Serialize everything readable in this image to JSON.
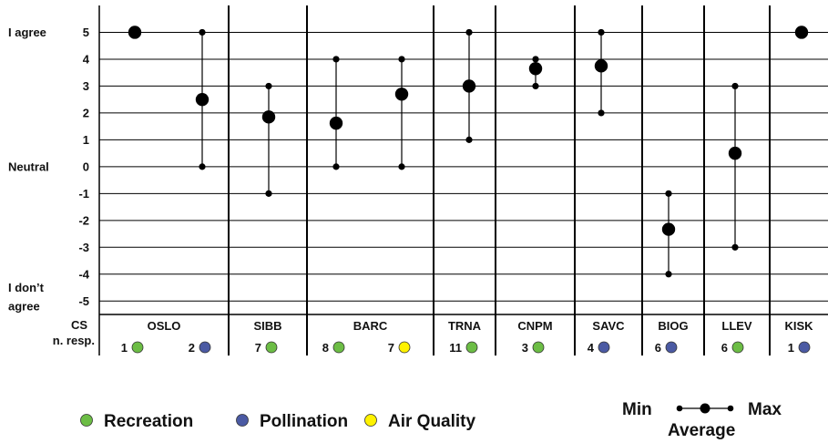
{
  "chart_data": {
    "type": "scatter",
    "y_range": [
      -5.5,
      6
    ],
    "y_ticks": [
      5,
      4,
      3,
      2,
      1,
      0,
      -1,
      -2,
      -3,
      -4,
      -5
    ],
    "y_tick_labels": [
      "5",
      "4",
      "3",
      "2",
      "1",
      "0",
      "-1",
      "-2",
      "-3",
      "-4",
      "-5"
    ],
    "y_text_labels": [
      {
        "text": "I agree",
        "at": 5
      },
      {
        "text": "Neutral",
        "at": 0
      },
      {
        "text": "I don’t",
        "at": -4.5
      },
      {
        "text": "agree",
        "at": -5.2
      }
    ],
    "header_labels": [
      "CS",
      "n. resp."
    ],
    "groups": [
      {
        "name": "OSLO",
        "items": [
          {
            "n": "1",
            "service": "Recreation",
            "min": 5,
            "avg": 5,
            "max": 5
          },
          {
            "n": "2",
            "service": "Pollination",
            "min": 0,
            "avg": 2.5,
            "max": 5
          }
        ]
      },
      {
        "name": "SIBB",
        "items": [
          {
            "n": "7",
            "service": "Recreation",
            "min": -1,
            "avg": 1.85,
            "max": 3
          }
        ]
      },
      {
        "name": "BARC",
        "items": [
          {
            "n": "8",
            "service": "Recreation",
            "min": 0,
            "avg": 1.62,
            "max": 4
          },
          {
            "n": "7",
            "service": "Air Quality",
            "min": 0,
            "avg": 2.7,
            "max": 4
          }
        ]
      },
      {
        "name": "TRNA",
        "items": [
          {
            "n": "11",
            "service": "Recreation",
            "min": 1,
            "avg": 3,
            "max": 5
          }
        ]
      },
      {
        "name": "CNPM",
        "items": [
          {
            "n": "3",
            "service": "Recreation",
            "min": 3,
            "avg": 3.65,
            "max": 4
          }
        ]
      },
      {
        "name": "SAVC",
        "items": [
          {
            "n": "4",
            "service": "Pollination",
            "min": 2,
            "avg": 3.75,
            "max": 5
          }
        ]
      },
      {
        "name": "BIOG",
        "items": [
          {
            "n": "6",
            "service": "Pollination",
            "min": -4,
            "avg": -2.33,
            "max": -1
          }
        ]
      },
      {
        "name": "LLEV",
        "items": [
          {
            "n": "6",
            "service": "Recreation",
            "min": -3,
            "avg": 0.5,
            "max": 3
          }
        ]
      },
      {
        "name": "KISK",
        "items": [
          {
            "n": "1",
            "service": "Pollination",
            "min": 5,
            "avg": 5,
            "max": 5
          }
        ]
      }
    ],
    "legend": [
      {
        "name": "Recreation",
        "color": "#6cbd45"
      },
      {
        "name": "Pollination",
        "color": "#4b5aa3"
      },
      {
        "name": "Air Quality",
        "color": "#fff200"
      }
    ],
    "range_key": {
      "min": "Min",
      "max": "Max",
      "average": "Average"
    },
    "grid": true
  }
}
